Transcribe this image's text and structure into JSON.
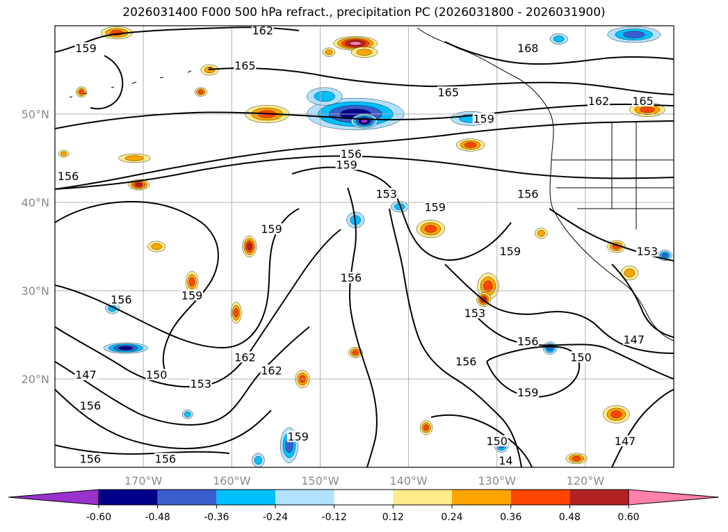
{
  "title": "2026031400 F000 500 hPa refract., precipitation PC (2026031800 - 2026031900)",
  "map": {
    "lat_ticks": [
      {
        "label": "50°N",
        "lat": 50
      },
      {
        "label": "40°N",
        "lat": 40
      },
      {
        "label": "30°N",
        "lat": 30
      },
      {
        "label": "20°N",
        "lat": 20
      }
    ],
    "lon_ticks": [
      {
        "label": "170°W",
        "lon": -170
      },
      {
        "label": "160°W",
        "lon": -160
      },
      {
        "label": "150°W",
        "lon": -150
      },
      {
        "label": "140°W",
        "lon": -140
      },
      {
        "label": "130°W",
        "lon": -130
      },
      {
        "label": "120°W",
        "lon": -120
      }
    ],
    "extent": {
      "lon_min": -180,
      "lon_max": -110,
      "lat_min": 10,
      "lat_max": 60
    },
    "contour_labels": [
      {
        "text": "159",
        "lon": -176.5,
        "lat": 57.5
      },
      {
        "text": "162",
        "lon": -156.5,
        "lat": 59.5
      },
      {
        "text": "165",
        "lon": -158.5,
        "lat": 55.5
      },
      {
        "text": "168",
        "lon": -126.5,
        "lat": 57.5
      },
      {
        "text": "165",
        "lon": -135.5,
        "lat": 52.5
      },
      {
        "text": "162",
        "lon": -118.5,
        "lat": 51.5
      },
      {
        "text": "165",
        "lon": -113.5,
        "lat": 51.5
      },
      {
        "text": "159",
        "lon": -131.5,
        "lat": 49.5
      },
      {
        "text": "156",
        "lon": -178.5,
        "lat": 43.0
      },
      {
        "text": "156",
        "lon": -146.5,
        "lat": 45.5
      },
      {
        "text": "159",
        "lon": -147.0,
        "lat": 44.3
      },
      {
        "text": "153",
        "lon": -142.5,
        "lat": 41.0
      },
      {
        "text": "156",
        "lon": -126.5,
        "lat": 41.0
      },
      {
        "text": "159",
        "lon": -137.0,
        "lat": 39.5
      },
      {
        "text": "159",
        "lon": -155.5,
        "lat": 37.0
      },
      {
        "text": "156",
        "lon": -146.5,
        "lat": 31.5
      },
      {
        "text": "159",
        "lon": -128.5,
        "lat": 34.5
      },
      {
        "text": "156",
        "lon": -172.5,
        "lat": 29.0
      },
      {
        "text": "159",
        "lon": -164.5,
        "lat": 29.5
      },
      {
        "text": "153",
        "lon": -132.5,
        "lat": 27.5
      },
      {
        "text": "156",
        "lon": -126.5,
        "lat": 24.3
      },
      {
        "text": "150",
        "lon": -120.5,
        "lat": 22.5
      },
      {
        "text": "147",
        "lon": -114.5,
        "lat": 24.5
      },
      {
        "text": "156",
        "lon": -133.5,
        "lat": 22.0
      },
      {
        "text": "159",
        "lon": -126.5,
        "lat": 18.5
      },
      {
        "text": "162",
        "lon": -158.5,
        "lat": 22.5
      },
      {
        "text": "162",
        "lon": -155.5,
        "lat": 21.0
      },
      {
        "text": "147",
        "lon": -176.5,
        "lat": 20.5
      },
      {
        "text": "150",
        "lon": -168.5,
        "lat": 20.5
      },
      {
        "text": "153",
        "lon": -163.5,
        "lat": 19.5
      },
      {
        "text": "156",
        "lon": -176.0,
        "lat": 17.0
      },
      {
        "text": "159",
        "lon": -152.5,
        "lat": 13.5
      },
      {
        "text": "150",
        "lon": -130.0,
        "lat": 13.0
      },
      {
        "text": "147",
        "lon": -115.5,
        "lat": 13.0
      },
      {
        "text": "14",
        "lon": -129.0,
        "lat": 10.8
      },
      {
        "text": "156",
        "lon": -176.0,
        "lat": 11.0
      },
      {
        "text": "156",
        "lon": -167.5,
        "lat": 11.0
      },
      {
        "text": "153",
        "lon": -113.0,
        "lat": 34.5
      }
    ],
    "precip_blobs": [
      {
        "lon": -173.0,
        "lat": 59.2,
        "rx": 1.8,
        "ry": 0.7,
        "v": 0.4
      },
      {
        "lon": -146.0,
        "lat": 58.0,
        "rx": 2.5,
        "ry": 0.8,
        "v": 0.6
      },
      {
        "lon": -145.0,
        "lat": 57.0,
        "rx": 1.5,
        "ry": 0.6,
        "v": 0.3
      },
      {
        "lon": -162.5,
        "lat": 55.0,
        "rx": 1.0,
        "ry": 0.6,
        "v": 0.35
      },
      {
        "lon": -177.0,
        "lat": 52.5,
        "rx": 0.6,
        "ry": 0.6,
        "v": 0.4
      },
      {
        "lon": -163.5,
        "lat": 52.5,
        "rx": 0.7,
        "ry": 0.5,
        "v": 0.4
      },
      {
        "lon": -156.0,
        "lat": 50.0,
        "rx": 2.5,
        "ry": 1.0,
        "v": 0.45
      },
      {
        "lon": -146.0,
        "lat": 50.0,
        "rx": 5.5,
        "ry": 1.8,
        "v": -0.5
      },
      {
        "lon": -149.5,
        "lat": 52.0,
        "rx": 2.0,
        "ry": 1.0,
        "v": -0.3
      },
      {
        "lon": -145.0,
        "lat": 49.2,
        "rx": 1.5,
        "ry": 0.8,
        "v": -0.65
      },
      {
        "lon": -133.0,
        "lat": 49.5,
        "rx": 2.2,
        "ry": 0.8,
        "v": -0.35
      },
      {
        "lon": -114.5,
        "lat": 59.0,
        "rx": 3.0,
        "ry": 0.9,
        "v": -0.45
      },
      {
        "lon": -123.0,
        "lat": 58.5,
        "rx": 1.0,
        "ry": 0.6,
        "v": -0.3
      },
      {
        "lon": -113.0,
        "lat": 50.5,
        "rx": 2.0,
        "ry": 0.8,
        "v": 0.45
      },
      {
        "lon": -133.0,
        "lat": 46.5,
        "rx": 1.6,
        "ry": 0.7,
        "v": 0.4
      },
      {
        "lon": -171.0,
        "lat": 45.0,
        "rx": 1.8,
        "ry": 0.5,
        "v": 0.35
      },
      {
        "lon": -170.5,
        "lat": 42.0,
        "rx": 1.2,
        "ry": 0.6,
        "v": 0.5
      },
      {
        "lon": -137.5,
        "lat": 37.0,
        "rx": 1.6,
        "ry": 1.0,
        "v": 0.45
      },
      {
        "lon": -141.0,
        "lat": 39.5,
        "rx": 1.0,
        "ry": 0.6,
        "v": -0.3
      },
      {
        "lon": -146.0,
        "lat": 38.0,
        "rx": 1.0,
        "ry": 0.9,
        "v": -0.35
      },
      {
        "lon": -168.5,
        "lat": 35.0,
        "rx": 1.0,
        "ry": 0.6,
        "v": 0.35
      },
      {
        "lon": -158.0,
        "lat": 35.0,
        "rx": 0.8,
        "ry": 1.2,
        "v": 0.5
      },
      {
        "lon": -164.5,
        "lat": 31.0,
        "rx": 0.7,
        "ry": 1.2,
        "v": 0.4
      },
      {
        "lon": -159.5,
        "lat": 27.5,
        "rx": 0.6,
        "ry": 1.2,
        "v": 0.45
      },
      {
        "lon": -131.0,
        "lat": 30.5,
        "rx": 1.2,
        "ry": 1.5,
        "v": 0.45
      },
      {
        "lon": -131.5,
        "lat": 29.0,
        "rx": 0.8,
        "ry": 0.8,
        "v": 0.5
      },
      {
        "lon": -173.5,
        "lat": 28.0,
        "rx": 0.8,
        "ry": 0.6,
        "v": -0.35
      },
      {
        "lon": -172.0,
        "lat": 23.5,
        "rx": 2.5,
        "ry": 0.6,
        "v": -0.5
      },
      {
        "lon": -152.0,
        "lat": 20.0,
        "rx": 0.8,
        "ry": 1.0,
        "v": 0.45
      },
      {
        "lon": -146.0,
        "lat": 23.0,
        "rx": 0.8,
        "ry": 0.6,
        "v": 0.4
      },
      {
        "lon": -124.0,
        "lat": 23.5,
        "rx": 0.8,
        "ry": 0.7,
        "v": -0.4
      },
      {
        "lon": -116.5,
        "lat": 16.0,
        "rx": 1.5,
        "ry": 1.0,
        "v": 0.45
      },
      {
        "lon": -115.0,
        "lat": 32.0,
        "rx": 1.0,
        "ry": 0.8,
        "v": 0.35
      },
      {
        "lon": -138.0,
        "lat": 14.5,
        "rx": 0.7,
        "ry": 0.8,
        "v": 0.45
      },
      {
        "lon": -153.5,
        "lat": 12.5,
        "rx": 1.0,
        "ry": 2.0,
        "v": -0.4
      },
      {
        "lon": -157.0,
        "lat": 10.8,
        "rx": 0.7,
        "ry": 0.8,
        "v": -0.35
      },
      {
        "lon": -129.5,
        "lat": 12.5,
        "rx": 0.8,
        "ry": 0.8,
        "v": -0.4
      },
      {
        "lon": -121.0,
        "lat": 11.0,
        "rx": 1.2,
        "ry": 0.6,
        "v": 0.45
      },
      {
        "lon": -116.5,
        "lat": 35.0,
        "rx": 1.0,
        "ry": 0.7,
        "v": 0.45
      },
      {
        "lon": -111.0,
        "lat": 34.0,
        "rx": 0.8,
        "ry": 0.6,
        "v": -0.45
      },
      {
        "lon": -125.0,
        "lat": 36.5,
        "rx": 0.7,
        "ry": 0.6,
        "v": 0.35
      },
      {
        "lon": -179.0,
        "lat": 45.5,
        "rx": 0.6,
        "ry": 0.4,
        "v": 0.3
      },
      {
        "lon": -165.0,
        "lat": 16.0,
        "rx": 0.6,
        "ry": 0.5,
        "v": -0.3
      },
      {
        "lon": -149.0,
        "lat": 57.0,
        "rx": 0.7,
        "ry": 0.5,
        "v": 0.35
      }
    ]
  },
  "colorbar": {
    "levels": [
      "-0.60",
      "-0.48",
      "-0.36",
      "-0.24",
      "-0.12",
      "0.12",
      "0.24",
      "0.36",
      "0.48",
      "0.60"
    ],
    "colors": [
      "#9932cc",
      "#00008b",
      "#3a5fcd",
      "#00bfff",
      "#b0e2ff",
      "#ffffff",
      "#ffec8b",
      "#ffa500",
      "#ff4500",
      "#b22222",
      "#ff82ab"
    ]
  }
}
